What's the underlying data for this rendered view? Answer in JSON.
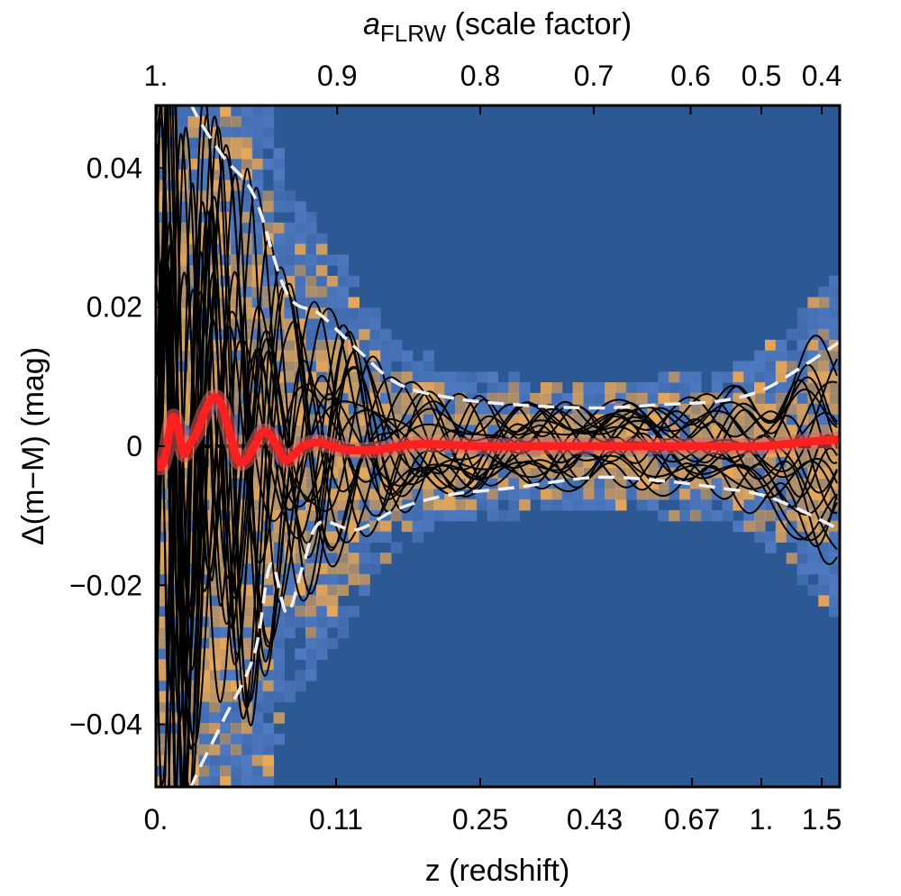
{
  "chart_data": {
    "type": "line",
    "xlabel": "z (redshift)",
    "ylabel": "Δ(m−M) (mag)",
    "x2label_main": "a",
    "x2label_sub": "FLRW",
    "x2label_rest": " (scale factor)",
    "xlim": [
      0,
      1.6
    ],
    "ylim": [
      -0.049,
      0.049
    ],
    "grid": false,
    "legend": "none",
    "x_ticks": [
      {
        "label": "0.",
        "value": 0
      },
      {
        "label": "0.11",
        "value": 0.11
      },
      {
        "label": "0.25",
        "value": 0.25
      },
      {
        "label": "0.43",
        "value": 0.43
      },
      {
        "label": "0.67",
        "value": 0.67
      },
      {
        "label": "1.",
        "value": 1.0
      },
      {
        "label": "1.5",
        "value": 1.5
      }
    ],
    "x2_ticks": [
      {
        "label": "1.",
        "a": 1.0
      },
      {
        "label": "0.9",
        "a": 0.9
      },
      {
        "label": "0.8",
        "a": 0.8
      },
      {
        "label": "0.7",
        "a": 0.7
      },
      {
        "label": "0.6",
        "a": 0.6
      },
      {
        "label": "0.5",
        "a": 0.5
      },
      {
        "label": "0.4",
        "a": 0.4
      }
    ],
    "y_ticks": [
      {
        "label": "0.04",
        "value": 0.04
      },
      {
        "label": "0.02",
        "value": 0.02
      },
      {
        "label": "0",
        "value": 0
      },
      {
        "label": "−0.02",
        "value": -0.02
      },
      {
        "label": "−0.04",
        "value": -0.04
      }
    ],
    "colors": {
      "background": "#2c5894",
      "density_mid": "#5079c0",
      "density_high": "#e8a85a",
      "samples": "#000000",
      "mean": "#ff2020",
      "band": "#e06060",
      "envelope": "#f0f0f0",
      "reference": "#000000"
    },
    "series": [
      {
        "kind": "envelope_upper",
        "x": [
          0.01,
          0.02,
          0.04,
          0.06,
          0.08,
          0.1,
          0.13,
          0.17,
          0.22,
          0.3,
          0.43,
          0.6,
          0.8,
          1.0,
          1.3,
          1.6
        ],
        "y": [
          0.06,
          0.05,
          0.042,
          0.036,
          0.022,
          0.019,
          0.014,
          0.009,
          0.007,
          0.006,
          0.0055,
          0.006,
          0.0065,
          0.008,
          0.011,
          0.015
        ]
      },
      {
        "kind": "envelope_lower",
        "x": [
          0.01,
          0.02,
          0.04,
          0.06,
          0.07,
          0.08,
          0.09,
          0.1,
          0.13,
          0.17,
          0.22,
          0.3,
          0.43,
          0.6,
          0.8,
          1.0,
          1.3,
          1.6
        ],
        "y": [
          -0.06,
          -0.05,
          -0.04,
          -0.03,
          -0.017,
          -0.024,
          -0.017,
          -0.011,
          -0.012,
          -0.009,
          -0.007,
          -0.006,
          -0.0045,
          -0.005,
          -0.006,
          -0.007,
          -0.009,
          -0.012
        ]
      },
      {
        "kind": "mean",
        "x": [
          0.0,
          0.003,
          0.006,
          0.01,
          0.013,
          0.017,
          0.02,
          0.025,
          0.03,
          0.035,
          0.04,
          0.045,
          0.05,
          0.055,
          0.06,
          0.065,
          0.07,
          0.075,
          0.08,
          0.09,
          0.1,
          0.12,
          0.15,
          0.19,
          0.25,
          0.35,
          0.5,
          0.7,
          1.0,
          1.3,
          1.6
        ],
        "y": [
          -0.002,
          -0.003,
          -0.001,
          0.004,
          0.003,
          -0.001,
          0.0,
          0.002,
          0.005,
          0.007,
          0.006,
          0.002,
          -0.002,
          -0.002,
          0.0,
          0.002,
          0.0015,
          -0.0005,
          -0.002,
          0.0,
          0.0005,
          -0.0005,
          -0.0005,
          0.0003,
          0.0,
          0.0,
          0.0,
          0.0,
          0.0,
          0.0005,
          0.001
        ]
      }
    ]
  }
}
